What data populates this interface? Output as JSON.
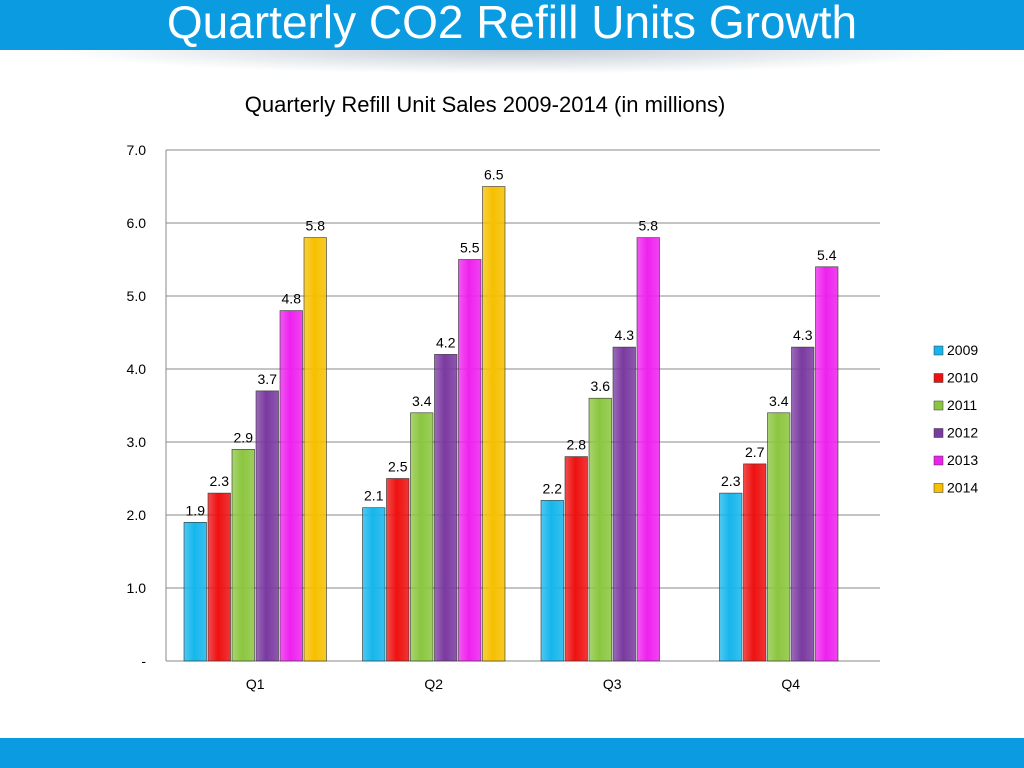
{
  "slide": {
    "title": "Quarterly CO2 Refill Units Growth"
  },
  "colors": {
    "header": "#0a9be0",
    "footer": "#0a9be0",
    "series": {
      "2009": "#16b6ec",
      "2010": "#ee1111",
      "2011": "#8cc640",
      "2012": "#7a3aa0",
      "2013": "#ee22ee",
      "2014": "#f6c000"
    }
  },
  "chart_data": {
    "type": "bar",
    "title": "Quarterly Refill Unit Sales 2009-2014 (in millions)",
    "xlabel": "",
    "ylabel": "",
    "categories": [
      "Q1",
      "Q2",
      "Q3",
      "Q4"
    ],
    "ylim": [
      0,
      7
    ],
    "yticks": [
      0,
      1,
      2,
      3,
      4,
      5,
      6,
      7
    ],
    "ytick_labels": [
      "-",
      "1.0",
      "2.0",
      "3.0",
      "4.0",
      "5.0",
      "6.0",
      "7.0"
    ],
    "grid": true,
    "legend_position": "right",
    "series": [
      {
        "name": "2009",
        "values": [
          1.9,
          2.1,
          2.2,
          2.3
        ],
        "labels": [
          "1.9",
          "2.1",
          "2.2",
          "2.3"
        ]
      },
      {
        "name": "2010",
        "values": [
          2.3,
          2.5,
          2.8,
          2.7
        ],
        "labels": [
          "2.3",
          "2.5",
          "2.8",
          "2.7"
        ]
      },
      {
        "name": "2011",
        "values": [
          2.9,
          3.4,
          3.6,
          3.4
        ],
        "labels": [
          "2.9",
          "3.4",
          "3.6",
          "3.4"
        ]
      },
      {
        "name": "2012",
        "values": [
          3.7,
          4.2,
          4.3,
          4.3
        ],
        "labels": [
          "3.7",
          "4.2",
          "4.3",
          "4.3"
        ]
      },
      {
        "name": "2013",
        "values": [
          4.8,
          5.5,
          5.8,
          5.4
        ],
        "labels": [
          "4.8",
          "5.5",
          "5.8",
          "5.4"
        ]
      },
      {
        "name": "2014",
        "values": [
          5.8,
          6.5,
          null,
          null
        ],
        "labels": [
          "5.8",
          "6.5",
          null,
          null
        ]
      }
    ]
  }
}
